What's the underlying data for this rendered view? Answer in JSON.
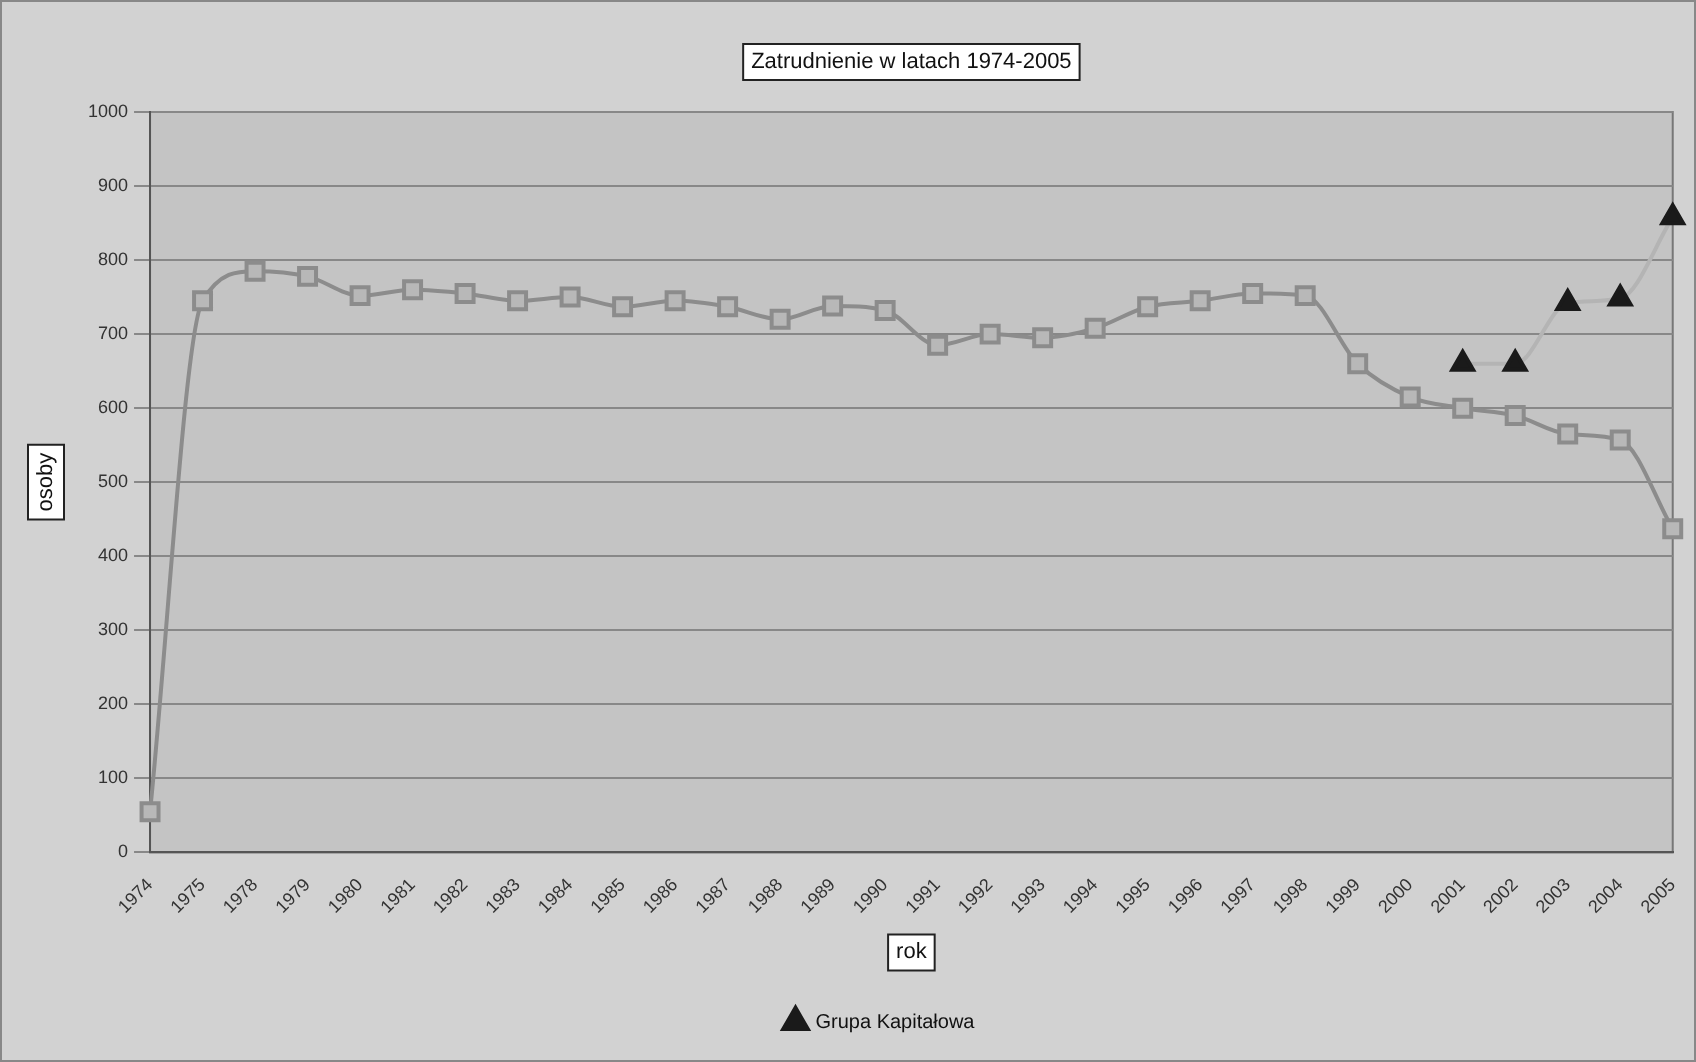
{
  "chart_data": {
    "type": "line",
    "title": "Zatrudnienie w latach 1974-2005",
    "xlabel": "rok",
    "ylabel": "osoby",
    "categories": [
      "1974",
      "1975",
      "1978",
      "1979",
      "1980",
      "1981",
      "1982",
      "1983",
      "1984",
      "1985",
      "1986",
      "1987",
      "1988",
      "1989",
      "1990",
      "1991",
      "1992",
      "1993",
      "1994",
      "1995",
      "1996",
      "1997",
      "1998",
      "1999",
      "2000",
      "2001",
      "2002",
      "2003",
      "2004",
      "2005"
    ],
    "series": [
      {
        "color": "#8c8c8c",
        "marker": "square",
        "values": [
          55,
          745,
          785,
          778,
          752,
          760,
          755,
          745,
          750,
          737,
          745,
          737,
          720,
          738,
          732,
          685,
          700,
          695,
          708,
          737,
          745,
          755,
          752,
          660,
          615,
          600,
          590,
          565,
          557,
          437
        ]
      },
      {
        "name": "Grupa Kapitałowa",
        "color": "#1a1a1a",
        "marker": "triangle",
        "values": [
          null,
          null,
          null,
          null,
          null,
          null,
          null,
          null,
          null,
          null,
          null,
          null,
          null,
          null,
          null,
          null,
          null,
          null,
          null,
          null,
          null,
          null,
          null,
          null,
          null,
          660,
          660,
          742,
          748,
          858
        ]
      }
    ],
    "ylim": [
      0,
      1000
    ],
    "yticks": [
      0,
      100,
      200,
      300,
      400,
      500,
      600,
      700,
      800,
      900,
      1000
    ],
    "grid": "y",
    "legend": "bottom"
  }
}
